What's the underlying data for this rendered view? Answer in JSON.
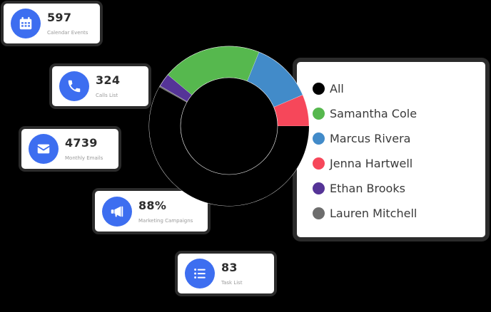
{
  "stats": [
    {
      "value": "597",
      "label": "Calendar Events",
      "icon": "calendar-icon"
    },
    {
      "value": "324",
      "label": "Calls List",
      "icon": "phone-icon"
    },
    {
      "value": "4739",
      "label": "Monthly Emails",
      "icon": "envelope-icon"
    },
    {
      "value": "88%",
      "label": "Marketing Campaigns",
      "icon": "megaphone-icon"
    },
    {
      "value": "83",
      "label": "Task List",
      "icon": "list-icon"
    }
  ],
  "colors": {
    "icon_bg": "#3d6ef0",
    "All": "#000000",
    "Samantha Cole": "#56b84e",
    "Marcus Rivera": "#428bc9",
    "Jenna Hartwell": "#f6475a",
    "Ethan Brooks": "#553497",
    "Lauren Mitchell": "#6d6d6d"
  },
  "legend": {
    "items": [
      {
        "name": "All",
        "color": "#000000"
      },
      {
        "name": "Samantha Cole",
        "color": "#56b84e"
      },
      {
        "name": "Marcus Rivera",
        "color": "#428bc9"
      },
      {
        "name": "Jenna Hartwell",
        "color": "#f6475a"
      },
      {
        "name": "Ethan Brooks",
        "color": "#553497"
      },
      {
        "name": "Lauren Mitchell",
        "color": "#6d6d6d"
      }
    ]
  },
  "chart_data": {
    "type": "pie",
    "subtype": "donut",
    "title": "",
    "categories": [
      "Jenna Hartwell",
      "Marcus Rivera",
      "Samantha Cole",
      "Ethan Brooks",
      "Lauren Mitchell",
      "All"
    ],
    "values": [
      6.4,
      12.5,
      20.0,
      2.7,
      0.3,
      58.1
    ],
    "colors": [
      "#f6475a",
      "#428bc9",
      "#56b84e",
      "#553497",
      "#6d6d6d",
      "#000000"
    ],
    "unit": "percent (estimated from arc angles)",
    "start_angle_deg": 0,
    "direction": "counter-clockwise from 3 o'clock",
    "legend_position": "right",
    "legend_entries": [
      "All",
      "Samantha Cole",
      "Marcus Rivera",
      "Jenna Hartwell",
      "Ethan Brooks",
      "Lauren Mitchell"
    ]
  }
}
